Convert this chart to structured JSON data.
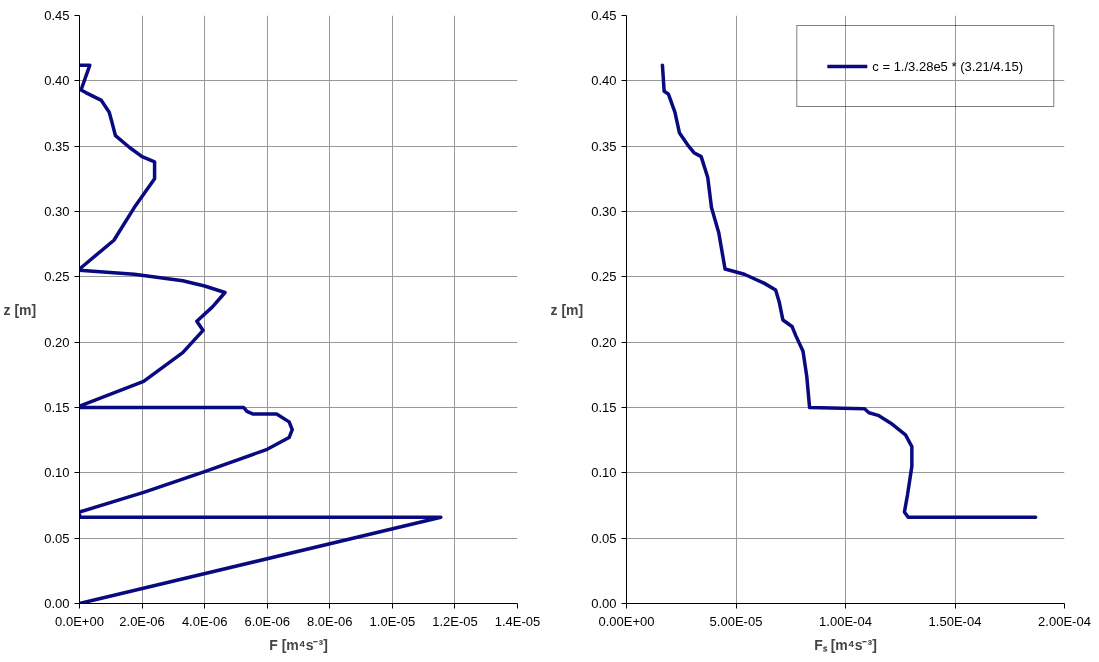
{
  "chart_data": [
    {
      "type": "line",
      "xlabel": "F [m⁴s⁻³]",
      "ylabel": "z [m]",
      "grid": true,
      "legend": false,
      "line_style": "solid",
      "series": [
        {
          "color": "#0a0a80",
          "x": [
            0,
            3.3e-07,
            5e-08,
            2e-07,
            7e-07,
            9.5e-07,
            1.03e-06,
            1.15e-06,
            1.6e-06,
            2e-06,
            2.4e-06,
            2.4e-06,
            1.75e-06,
            1.1e-06,
            0,
            0,
            1.75e-06,
            3.3e-06,
            4e-06,
            4.65e-06,
            4.25e-06,
            3.75e-06,
            3.95e-06,
            3.3e-06,
            2.05e-06,
            0,
            0,
            5.25e-06,
            5.35e-06,
            5.55e-06,
            6.3e-06,
            6.7e-06,
            6.8e-06,
            6.7e-06,
            6e-06,
            4e-06,
            2.05e-06,
            0,
            0,
            1.155e-05,
            0
          ],
          "values": [
            0.412,
            0.412,
            0.393,
            0.391,
            0.385,
            0.376,
            0.369,
            0.358,
            0.349,
            0.342,
            0.338,
            0.325,
            0.303,
            0.278,
            0.256,
            0.255,
            0.252,
            0.247,
            0.243,
            0.238,
            0.227,
            0.216,
            0.209,
            0.192,
            0.17,
            0.151,
            0.15,
            0.15,
            0.147,
            0.145,
            0.145,
            0.139,
            0.133,
            0.127,
            0.118,
            0.101,
            0.085,
            0.07,
            0.066,
            0.066,
            0
          ]
        }
      ],
      "xlim": [
        0,
        1.4e-05
      ],
      "xticks": [
        {
          "value": 0,
          "label": "0.0E+00"
        },
        {
          "value": 2e-06,
          "label": "2.0E-06"
        },
        {
          "value": 4e-06,
          "label": "4.0E-06"
        },
        {
          "value": 6e-06,
          "label": "6.0E-06"
        },
        {
          "value": 8e-06,
          "label": "8.0E-06"
        },
        {
          "value": 1e-05,
          "label": "1.0E-05"
        },
        {
          "value": 1.2e-05,
          "label": "1.2E-05"
        },
        {
          "value": 1.4e-05,
          "label": "1.4E-05"
        }
      ],
      "ylim": [
        0,
        0.45
      ],
      "yticks": [
        {
          "value": 0,
          "label": "0.00"
        },
        {
          "value": 0.05,
          "label": "0.05"
        },
        {
          "value": 0.1,
          "label": "0.10"
        },
        {
          "value": 0.15,
          "label": "0.15"
        },
        {
          "value": 0.2,
          "label": "0.20"
        },
        {
          "value": 0.25,
          "label": "0.25"
        },
        {
          "value": 0.3,
          "label": "0.30"
        },
        {
          "value": 0.35,
          "label": "0.35"
        },
        {
          "value": 0.4,
          "label": "0.40"
        },
        {
          "value": 0.45,
          "label": "0.45"
        }
      ]
    },
    {
      "type": "line",
      "xlabel": "Fₛ [m⁴s⁻³]",
      "ylabel": "z [m]",
      "grid": true,
      "legend": "top right",
      "line_style": "solid",
      "series": [
        {
          "name": "c = 1./3.28e5 * (3.21/4.15)",
          "color": "#0a0a80",
          "x": [
            1.64e-05,
            1.72e-05,
            1.91e-05,
            2.21e-05,
            2.42e-05,
            2.79e-05,
            3.08e-05,
            3.41e-05,
            3.71e-05,
            3.88e-05,
            4.21e-05,
            4.5e-05,
            5.38e-05,
            6.3e-05,
            6.81e-05,
            6.97e-05,
            7.14e-05,
            7.56e-05,
            7.73e-05,
            8.06e-05,
            8.23e-05,
            8.36e-05,
            0.0001087,
            0.0001107,
            0.0001149,
            0.0001207,
            0.0001274,
            0.0001303,
            0.0001303,
            0.0001283,
            0.0001269,
            0.0001286,
            0.0001868
          ],
          "values": [
            0.412,
            0.392,
            0.39,
            0.376,
            0.36,
            0.351,
            0.345,
            0.342,
            0.326,
            0.303,
            0.284,
            0.256,
            0.252,
            0.245,
            0.24,
            0.231,
            0.217,
            0.212,
            0.205,
            0.193,
            0.174,
            0.15,
            0.149,
            0.146,
            0.144,
            0.138,
            0.129,
            0.12,
            0.105,
            0.083,
            0.07,
            0.066,
            0.066
          ]
        }
      ],
      "xlim": [
        0,
        0.0002
      ],
      "xticks": [
        {
          "value": 0,
          "label": "0.00E+00"
        },
        {
          "value": 5e-05,
          "label": "5.00E-05"
        },
        {
          "value": 0.0001,
          "label": "1.00E-04"
        },
        {
          "value": 0.00015,
          "label": "1.50E-04"
        },
        {
          "value": 0.0002,
          "label": "2.00E-04"
        }
      ],
      "ylim": [
        0,
        0.45
      ],
      "yticks": [
        {
          "value": 0,
          "label": "0.00"
        },
        {
          "value": 0.05,
          "label": "0.05"
        },
        {
          "value": 0.1,
          "label": "0.10"
        },
        {
          "value": 0.15,
          "label": "0.15"
        },
        {
          "value": 0.2,
          "label": "0.20"
        },
        {
          "value": 0.25,
          "label": "0.25"
        },
        {
          "value": 0.3,
          "label": "0.30"
        },
        {
          "value": 0.35,
          "label": "0.35"
        },
        {
          "value": 0.4,
          "label": "0.40"
        },
        {
          "value": 0.45,
          "label": "0.45"
        }
      ]
    }
  ]
}
